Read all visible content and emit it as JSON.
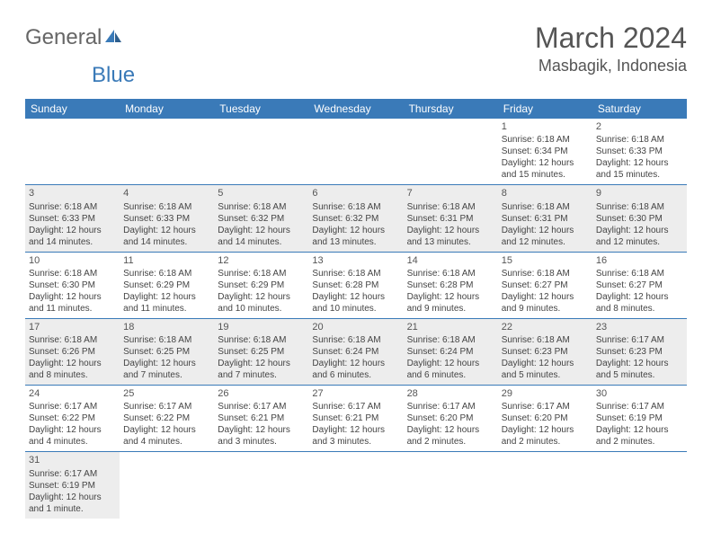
{
  "logo": {
    "part1": "General",
    "part2": "Blue"
  },
  "title": "March 2024",
  "location": "Masbagik, Indonesia",
  "colors": {
    "header_bg": "#3a7ab8",
    "header_text": "#ffffff",
    "shaded_bg": "#ededed",
    "text": "#444444",
    "rule": "#3a7ab8"
  },
  "weekdays": [
    "Sunday",
    "Monday",
    "Tuesday",
    "Wednesday",
    "Thursday",
    "Friday",
    "Saturday"
  ],
  "weeks": [
    [
      {
        "n": "",
        "sr": "",
        "ss": "",
        "dl": ""
      },
      {
        "n": "",
        "sr": "",
        "ss": "",
        "dl": ""
      },
      {
        "n": "",
        "sr": "",
        "ss": "",
        "dl": ""
      },
      {
        "n": "",
        "sr": "",
        "ss": "",
        "dl": ""
      },
      {
        "n": "",
        "sr": "",
        "ss": "",
        "dl": ""
      },
      {
        "n": "1",
        "sr": "Sunrise: 6:18 AM",
        "ss": "Sunset: 6:34 PM",
        "dl": "Daylight: 12 hours and 15 minutes."
      },
      {
        "n": "2",
        "sr": "Sunrise: 6:18 AM",
        "ss": "Sunset: 6:33 PM",
        "dl": "Daylight: 12 hours and 15 minutes."
      }
    ],
    [
      {
        "n": "3",
        "sr": "Sunrise: 6:18 AM",
        "ss": "Sunset: 6:33 PM",
        "dl": "Daylight: 12 hours and 14 minutes."
      },
      {
        "n": "4",
        "sr": "Sunrise: 6:18 AM",
        "ss": "Sunset: 6:33 PM",
        "dl": "Daylight: 12 hours and 14 minutes."
      },
      {
        "n": "5",
        "sr": "Sunrise: 6:18 AM",
        "ss": "Sunset: 6:32 PM",
        "dl": "Daylight: 12 hours and 14 minutes."
      },
      {
        "n": "6",
        "sr": "Sunrise: 6:18 AM",
        "ss": "Sunset: 6:32 PM",
        "dl": "Daylight: 12 hours and 13 minutes."
      },
      {
        "n": "7",
        "sr": "Sunrise: 6:18 AM",
        "ss": "Sunset: 6:31 PM",
        "dl": "Daylight: 12 hours and 13 minutes."
      },
      {
        "n": "8",
        "sr": "Sunrise: 6:18 AM",
        "ss": "Sunset: 6:31 PM",
        "dl": "Daylight: 12 hours and 12 minutes."
      },
      {
        "n": "9",
        "sr": "Sunrise: 6:18 AM",
        "ss": "Sunset: 6:30 PM",
        "dl": "Daylight: 12 hours and 12 minutes."
      }
    ],
    [
      {
        "n": "10",
        "sr": "Sunrise: 6:18 AM",
        "ss": "Sunset: 6:30 PM",
        "dl": "Daylight: 12 hours and 11 minutes."
      },
      {
        "n": "11",
        "sr": "Sunrise: 6:18 AM",
        "ss": "Sunset: 6:29 PM",
        "dl": "Daylight: 12 hours and 11 minutes."
      },
      {
        "n": "12",
        "sr": "Sunrise: 6:18 AM",
        "ss": "Sunset: 6:29 PM",
        "dl": "Daylight: 12 hours and 10 minutes."
      },
      {
        "n": "13",
        "sr": "Sunrise: 6:18 AM",
        "ss": "Sunset: 6:28 PM",
        "dl": "Daylight: 12 hours and 10 minutes."
      },
      {
        "n": "14",
        "sr": "Sunrise: 6:18 AM",
        "ss": "Sunset: 6:28 PM",
        "dl": "Daylight: 12 hours and 9 minutes."
      },
      {
        "n": "15",
        "sr": "Sunrise: 6:18 AM",
        "ss": "Sunset: 6:27 PM",
        "dl": "Daylight: 12 hours and 9 minutes."
      },
      {
        "n": "16",
        "sr": "Sunrise: 6:18 AM",
        "ss": "Sunset: 6:27 PM",
        "dl": "Daylight: 12 hours and 8 minutes."
      }
    ],
    [
      {
        "n": "17",
        "sr": "Sunrise: 6:18 AM",
        "ss": "Sunset: 6:26 PM",
        "dl": "Daylight: 12 hours and 8 minutes."
      },
      {
        "n": "18",
        "sr": "Sunrise: 6:18 AM",
        "ss": "Sunset: 6:25 PM",
        "dl": "Daylight: 12 hours and 7 minutes."
      },
      {
        "n": "19",
        "sr": "Sunrise: 6:18 AM",
        "ss": "Sunset: 6:25 PM",
        "dl": "Daylight: 12 hours and 7 minutes."
      },
      {
        "n": "20",
        "sr": "Sunrise: 6:18 AM",
        "ss": "Sunset: 6:24 PM",
        "dl": "Daylight: 12 hours and 6 minutes."
      },
      {
        "n": "21",
        "sr": "Sunrise: 6:18 AM",
        "ss": "Sunset: 6:24 PM",
        "dl": "Daylight: 12 hours and 6 minutes."
      },
      {
        "n": "22",
        "sr": "Sunrise: 6:18 AM",
        "ss": "Sunset: 6:23 PM",
        "dl": "Daylight: 12 hours and 5 minutes."
      },
      {
        "n": "23",
        "sr": "Sunrise: 6:17 AM",
        "ss": "Sunset: 6:23 PM",
        "dl": "Daylight: 12 hours and 5 minutes."
      }
    ],
    [
      {
        "n": "24",
        "sr": "Sunrise: 6:17 AM",
        "ss": "Sunset: 6:22 PM",
        "dl": "Daylight: 12 hours and 4 minutes."
      },
      {
        "n": "25",
        "sr": "Sunrise: 6:17 AM",
        "ss": "Sunset: 6:22 PM",
        "dl": "Daylight: 12 hours and 4 minutes."
      },
      {
        "n": "26",
        "sr": "Sunrise: 6:17 AM",
        "ss": "Sunset: 6:21 PM",
        "dl": "Daylight: 12 hours and 3 minutes."
      },
      {
        "n": "27",
        "sr": "Sunrise: 6:17 AM",
        "ss": "Sunset: 6:21 PM",
        "dl": "Daylight: 12 hours and 3 minutes."
      },
      {
        "n": "28",
        "sr": "Sunrise: 6:17 AM",
        "ss": "Sunset: 6:20 PM",
        "dl": "Daylight: 12 hours and 2 minutes."
      },
      {
        "n": "29",
        "sr": "Sunrise: 6:17 AM",
        "ss": "Sunset: 6:20 PM",
        "dl": "Daylight: 12 hours and 2 minutes."
      },
      {
        "n": "30",
        "sr": "Sunrise: 6:17 AM",
        "ss": "Sunset: 6:19 PM",
        "dl": "Daylight: 12 hours and 2 minutes."
      }
    ],
    [
      {
        "n": "31",
        "sr": "Sunrise: 6:17 AM",
        "ss": "Sunset: 6:19 PM",
        "dl": "Daylight: 12 hours and 1 minute."
      },
      {
        "n": "",
        "sr": "",
        "ss": "",
        "dl": ""
      },
      {
        "n": "",
        "sr": "",
        "ss": "",
        "dl": ""
      },
      {
        "n": "",
        "sr": "",
        "ss": "",
        "dl": ""
      },
      {
        "n": "",
        "sr": "",
        "ss": "",
        "dl": ""
      },
      {
        "n": "",
        "sr": "",
        "ss": "",
        "dl": ""
      },
      {
        "n": "",
        "sr": "",
        "ss": "",
        "dl": ""
      }
    ]
  ]
}
